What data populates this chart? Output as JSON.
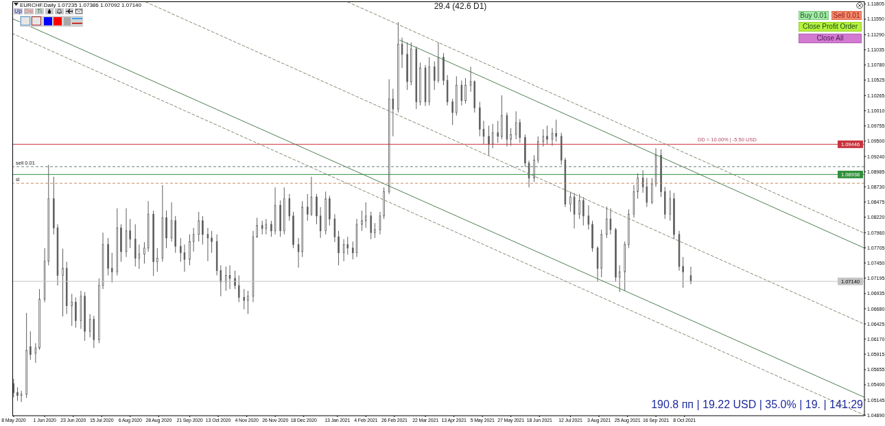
{
  "chart_data": {
    "type": "candlestick",
    "title": "EURCHF.Daily 1.07235 1.07386 1.07092 1.07140",
    "color": "#5c5c5c",
    "x": [
      "2020-05-08",
      "2020-05-11",
      "2020-05-14",
      "2020-05-18",
      "2020-05-21",
      "2020-05-25",
      "2020-05-28",
      "2020-06-01",
      "2020-06-04",
      "2020-06-08",
      "2020-06-11",
      "2020-06-15",
      "2020-06-18",
      "2020-06-22",
      "2020-06-25",
      "2020-06-29",
      "2020-07-02",
      "2020-07-06",
      "2020-07-09",
      "2020-07-13",
      "2020-07-16",
      "2020-07-20",
      "2020-07-23",
      "2020-07-27",
      "2020-07-30",
      "2020-08-03",
      "2020-08-06",
      "2020-08-10",
      "2020-08-13",
      "2020-08-17",
      "2020-08-20",
      "2020-08-24",
      "2020-08-27",
      "2020-08-31",
      "2020-09-03",
      "2020-09-07",
      "2020-09-10",
      "2020-09-14",
      "2020-09-17",
      "2020-09-21",
      "2020-09-24",
      "2020-09-28",
      "2020-10-01",
      "2020-10-05",
      "2020-10-08",
      "2020-10-12",
      "2020-10-15",
      "2020-10-19",
      "2020-10-22",
      "2020-10-26",
      "2020-10-29",
      "2020-11-02",
      "2020-11-05",
      "2020-11-09",
      "2020-11-12",
      "2020-11-16",
      "2020-11-19",
      "2020-11-23",
      "2020-11-26",
      "2020-11-30",
      "2020-12-03",
      "2020-12-07",
      "2020-12-10",
      "2020-12-14",
      "2020-12-17",
      "2020-12-21",
      "2020-12-24",
      "2020-12-28",
      "2020-12-31",
      "2021-01-04",
      "2021-01-07",
      "2021-01-11",
      "2021-01-14",
      "2021-01-18",
      "2021-01-21",
      "2021-01-25",
      "2021-01-28",
      "2021-02-01",
      "2021-02-04",
      "2021-02-08",
      "2021-02-11",
      "2021-02-15",
      "2021-02-18",
      "2021-02-22",
      "2021-02-25",
      "2021-03-01",
      "2021-03-04",
      "2021-03-08",
      "2021-03-11",
      "2021-03-15",
      "2021-03-18",
      "2021-03-22",
      "2021-03-25",
      "2021-03-29",
      "2021-04-01",
      "2021-04-05",
      "2021-04-08",
      "2021-04-12",
      "2021-04-15",
      "2021-04-19",
      "2021-04-22",
      "2021-04-26",
      "2021-04-29",
      "2021-05-03",
      "2021-05-06",
      "2021-05-10",
      "2021-05-13",
      "2021-05-17",
      "2021-05-20",
      "2021-05-24",
      "2021-05-27",
      "2021-05-31",
      "2021-06-03",
      "2021-06-07",
      "2021-06-10",
      "2021-06-14",
      "2021-06-17",
      "2021-06-21",
      "2021-06-24",
      "2021-06-28",
      "2021-07-01",
      "2021-07-05",
      "2021-07-08",
      "2021-07-12",
      "2021-07-15",
      "2021-07-19",
      "2021-07-22",
      "2021-07-26",
      "2021-07-29",
      "2021-08-02",
      "2021-08-05",
      "2021-08-09",
      "2021-08-12",
      "2021-08-16",
      "2021-08-19",
      "2021-08-23",
      "2021-08-26",
      "2021-08-30",
      "2021-09-02",
      "2021-09-06",
      "2021-09-09",
      "2021-09-13",
      "2021-09-16",
      "2021-09-20",
      "2021-09-23",
      "2021-09-27",
      "2021-09-30",
      "2021-10-04",
      "2021-10-07",
      "2021-10-13"
    ],
    "ohlc": [
      [
        1.0542,
        1.055,
        1.0519,
        1.0527
      ],
      [
        1.0527,
        1.0536,
        1.0513,
        1.0522
      ],
      [
        1.0522,
        1.053,
        1.0511,
        1.0524
      ],
      [
        1.0524,
        1.0661,
        1.0518,
        1.0598
      ],
      [
        1.0604,
        1.063,
        1.0582,
        1.0591
      ],
      [
        1.0593,
        1.061,
        1.0577,
        1.0602
      ],
      [
        1.0602,
        1.0701,
        1.0599,
        1.0684
      ],
      [
        1.0684,
        1.077,
        1.0679,
        1.0748
      ],
      [
        1.0748,
        1.091,
        1.0741,
        1.0853
      ],
      [
        1.0853,
        1.089,
        1.0793,
        1.0804
      ],
      [
        1.0804,
        1.081,
        1.0707,
        1.0724
      ],
      [
        1.0724,
        1.0769,
        1.0655,
        1.0736
      ],
      [
        1.0736,
        1.0747,
        1.0659,
        1.0673
      ],
      [
        1.0673,
        1.0693,
        1.0639,
        1.0679
      ],
      [
        1.0679,
        1.0687,
        1.0636,
        1.0648
      ],
      [
        1.0648,
        1.0698,
        1.0634,
        1.0689
      ],
      [
        1.0689,
        1.0696,
        1.0614,
        1.063
      ],
      [
        1.063,
        1.0659,
        1.062,
        1.065
      ],
      [
        1.065,
        1.0656,
        1.0602,
        1.0616
      ],
      [
        1.0616,
        1.0719,
        1.061,
        1.0707
      ],
      [
        1.0707,
        1.0796,
        1.0701,
        1.0776
      ],
      [
        1.0776,
        1.0787,
        1.0724,
        1.0736
      ],
      [
        1.0736,
        1.0762,
        1.0712,
        1.073
      ],
      [
        1.073,
        1.0837,
        1.0724,
        1.0804
      ],
      [
        1.0804,
        1.081,
        1.0747,
        1.0764
      ],
      [
        1.0764,
        1.0837,
        1.0755,
        1.0799
      ],
      [
        1.0799,
        1.0819,
        1.077,
        1.0785
      ],
      [
        1.0785,
        1.081,
        1.0739,
        1.0753
      ],
      [
        1.0753,
        1.0776,
        1.0735,
        1.076
      ],
      [
        1.076,
        1.078,
        1.0744,
        1.077
      ],
      [
        1.077,
        1.0849,
        1.0764,
        1.0827
      ],
      [
        1.0827,
        1.0833,
        1.0723,
        1.0747
      ],
      [
        1.0747,
        1.077,
        1.073,
        1.0753
      ],
      [
        1.0753,
        1.0876,
        1.0747,
        1.0821
      ],
      [
        1.0821,
        1.0833,
        1.077,
        1.0787
      ],
      [
        1.0787,
        1.0847,
        1.0781,
        1.0816
      ],
      [
        1.0816,
        1.0824,
        1.0762,
        1.0773
      ],
      [
        1.0773,
        1.0787,
        1.0747,
        1.0762
      ],
      [
        1.0762,
        1.0776,
        1.073,
        1.0751
      ],
      [
        1.0751,
        1.0793,
        1.0741,
        1.0781
      ],
      [
        1.0781,
        1.0804,
        1.0764,
        1.0793
      ],
      [
        1.0793,
        1.0831,
        1.0781,
        1.0816
      ],
      [
        1.0816,
        1.0824,
        1.0776,
        1.0793
      ],
      [
        1.0793,
        1.0804,
        1.0748,
        1.0787
      ],
      [
        1.0787,
        1.0799,
        1.0762,
        1.0781
      ],
      [
        1.0781,
        1.0793,
        1.0724,
        1.0732
      ],
      [
        1.0732,
        1.0741,
        1.0689,
        1.0713
      ],
      [
        1.0713,
        1.0739,
        1.0698,
        1.0724
      ],
      [
        1.0724,
        1.0741,
        1.0701,
        1.0719
      ],
      [
        1.0719,
        1.0732,
        1.0701,
        1.0707
      ],
      [
        1.0707,
        1.0724,
        1.0679,
        1.0687
      ],
      [
        1.0687,
        1.0701,
        1.0667,
        1.0682
      ],
      [
        1.0682,
        1.0698,
        1.0659,
        1.0689
      ],
      [
        1.0689,
        1.0799,
        1.0679,
        1.0789
      ],
      [
        1.0789,
        1.0821,
        1.0787,
        1.0808
      ],
      [
        1.0808,
        1.0816,
        1.0793,
        1.0803
      ],
      [
        1.0803,
        1.0819,
        1.0793,
        1.081
      ],
      [
        1.081,
        1.0816,
        1.0789,
        1.0799
      ],
      [
        1.0799,
        1.0872,
        1.0793,
        1.0842
      ],
      [
        1.0842,
        1.085,
        1.0789,
        1.0799
      ],
      [
        1.0799,
        1.0872,
        1.0793,
        1.0853
      ],
      [
        1.0853,
        1.0861,
        1.0816,
        1.0824
      ],
      [
        1.0824,
        1.0831,
        1.077,
        1.0776
      ],
      [
        1.0776,
        1.0787,
        1.0737,
        1.0764
      ],
      [
        1.0764,
        1.0849,
        1.0755,
        1.0839
      ],
      [
        1.0839,
        1.0861,
        1.0816,
        1.0827
      ],
      [
        1.0827,
        1.089,
        1.0824,
        1.0856
      ],
      [
        1.0856,
        1.0861,
        1.081,
        1.0824
      ],
      [
        1.0824,
        1.0839,
        1.0787,
        1.0799
      ],
      [
        1.0799,
        1.0865,
        1.0793,
        1.0853
      ],
      [
        1.0853,
        1.0858,
        1.0808,
        1.0819
      ],
      [
        1.0819,
        1.0827,
        1.078,
        1.0789
      ],
      [
        1.0789,
        1.0799,
        1.0741,
        1.0762
      ],
      [
        1.0762,
        1.0785,
        1.0748,
        1.0776
      ],
      [
        1.0776,
        1.0789,
        1.0759,
        1.077
      ],
      [
        1.077,
        1.0781,
        1.0751,
        1.0762
      ],
      [
        1.0762,
        1.0819,
        1.0755,
        1.081
      ],
      [
        1.081,
        1.0833,
        1.0799,
        1.0816
      ],
      [
        1.0816,
        1.0847,
        1.0804,
        1.0824
      ],
      [
        1.0824,
        1.0831,
        1.0785,
        1.0796
      ],
      [
        1.0796,
        1.0812,
        1.0787,
        1.0801
      ],
      [
        1.0801,
        1.0831,
        1.0793,
        1.0824
      ],
      [
        1.0824,
        1.0872,
        1.0819,
        1.0865
      ],
      [
        1.0865,
        1.1054,
        1.0861,
        1.1021
      ],
      [
        1.1021,
        1.1038,
        1.0958,
        1.1004
      ],
      [
        1.1004,
        1.115,
        1.0998,
        1.1113
      ],
      [
        1.1113,
        1.1124,
        1.1073,
        1.1096
      ],
      [
        1.1096,
        1.1116,
        1.1036,
        1.105
      ],
      [
        1.105,
        1.1116,
        1.1044,
        1.1105
      ],
      [
        1.1105,
        1.1109,
        1.1004,
        1.1016
      ],
      [
        1.1016,
        1.1082,
        1.101,
        1.1073
      ],
      [
        1.1073,
        1.1078,
        1.1009,
        1.1016
      ],
      [
        1.1016,
        1.1091,
        1.101,
        1.1075
      ],
      [
        1.1075,
        1.1084,
        1.1036,
        1.1052
      ],
      [
        1.1052,
        1.1116,
        1.1048,
        1.1091
      ],
      [
        1.1091,
        1.1098,
        1.1044,
        1.1052
      ],
      [
        1.1052,
        1.1061,
        1.101,
        1.1016
      ],
      [
        1.1016,
        1.1021,
        1.0977,
        1.0998
      ],
      [
        1.0998,
        1.1059,
        1.0993,
        1.1044
      ],
      [
        1.1044,
        1.1052,
        1.101,
        1.1018
      ],
      [
        1.1018,
        1.1056,
        1.1013,
        1.1044
      ],
      [
        1.1044,
        1.1075,
        1.1033,
        1.105
      ],
      [
        1.105,
        1.1052,
        1.0998,
        1.1006
      ],
      [
        1.1006,
        1.1016,
        1.0958,
        1.097
      ],
      [
        1.097,
        1.0984,
        1.0945,
        1.0958
      ],
      [
        1.0958,
        1.0976,
        1.0926,
        1.0945
      ],
      [
        1.0945,
        1.0979,
        1.0938,
        1.0964
      ],
      [
        1.0964,
        1.0984,
        1.0947,
        1.0958
      ],
      [
        1.0958,
        1.1027,
        1.0953,
        1.0993
      ],
      [
        1.0993,
        1.0998,
        1.0941,
        1.0953
      ],
      [
        1.0953,
        1.0972,
        1.0942,
        1.0961
      ],
      [
        1.0961,
        1.1,
        1.0953,
        1.0981
      ],
      [
        1.0981,
        1.0987,
        1.0947,
        1.0956
      ],
      [
        1.0956,
        1.0961,
        1.0907,
        1.0913
      ],
      [
        1.0913,
        1.0917,
        1.0872,
        1.0888
      ],
      [
        1.0888,
        1.0926,
        1.0881,
        1.0918
      ],
      [
        1.0918,
        1.0958,
        1.0913,
        1.0949
      ],
      [
        1.0949,
        1.097,
        1.0941,
        1.0958
      ],
      [
        1.0958,
        1.0976,
        1.0945,
        1.0953
      ],
      [
        1.0953,
        1.0972,
        1.0942,
        1.0963
      ],
      [
        1.0963,
        1.0986,
        1.0949,
        1.0958
      ],
      [
        1.0958,
        1.0964,
        1.091,
        1.0918
      ],
      [
        1.0918,
        1.0922,
        1.0839,
        1.0844
      ],
      [
        1.0844,
        1.0865,
        1.0831,
        1.0856
      ],
      [
        1.0856,
        1.0863,
        1.0803,
        1.0827
      ],
      [
        1.0827,
        1.0861,
        1.0819,
        1.085
      ],
      [
        1.085,
        1.0856,
        1.0808,
        1.0824
      ],
      [
        1.0824,
        1.0842,
        1.0801,
        1.081
      ],
      [
        1.081,
        1.0816,
        1.0764,
        1.077
      ],
      [
        1.077,
        1.0773,
        1.0714,
        1.0736
      ],
      [
        1.0736,
        1.0801,
        1.0721,
        1.0793
      ],
      [
        1.0793,
        1.084,
        1.0787,
        1.0819
      ],
      [
        1.0819,
        1.0837,
        1.0793,
        1.0801
      ],
      [
        1.0801,
        1.0804,
        1.0713,
        1.0721
      ],
      [
        1.0721,
        1.0741,
        1.0696,
        1.073
      ],
      [
        1.073,
        1.0781,
        1.0698,
        1.0776
      ],
      [
        1.0776,
        1.0835,
        1.077,
        1.0827
      ],
      [
        1.0827,
        1.0876,
        1.0821,
        1.0865
      ],
      [
        1.0865,
        1.0896,
        1.0853,
        1.0888
      ],
      [
        1.0888,
        1.0901,
        1.0863,
        1.0873
      ],
      [
        1.0873,
        1.0888,
        1.0839,
        1.0847
      ],
      [
        1.0847,
        1.0888,
        1.0844,
        1.0878
      ],
      [
        1.0878,
        1.0938,
        1.0873,
        1.0926
      ],
      [
        1.0926,
        1.0936,
        1.0856,
        1.0865
      ],
      [
        1.0865,
        1.0873,
        1.0819,
        1.0827
      ],
      [
        1.0827,
        1.0867,
        1.0816,
        1.0853
      ],
      [
        1.0853,
        1.0863,
        1.0785,
        1.0793
      ],
      [
        1.0793,
        1.0799,
        1.0732,
        1.0739
      ],
      [
        1.0739,
        1.0755,
        1.0703,
        1.073
      ],
      [
        1.07235,
        1.07386,
        1.07092,
        1.0714
      ]
    ],
    "series": [
      {
        "type": "line",
        "x": [
          "2021-01-21",
          "2022-02-24"
        ],
        "values": [
          1.1184,
          1.0795
        ],
        "color": "#7f8a6c",
        "line_style": "dashed"
      },
      {
        "type": "line",
        "x": [
          "2021-03-02",
          "2022-02-24"
        ],
        "values": [
          1.112,
          1.077
        ],
        "color": "#4e7d52",
        "line_style": "solid"
      },
      {
        "type": "line",
        "x": [
          "2020-08-18",
          "2022-02-24"
        ],
        "values": [
          1.1184,
          1.0642
        ],
        "color": "#7f8a6c",
        "line_style": "dashed"
      },
      {
        "type": "line",
        "x": [
          "2020-05-07",
          "2022-02-24"
        ],
        "values": [
          1.1156,
          1.0519
        ],
        "color": "#4e7d52",
        "line_style": "solid"
      },
      {
        "type": "line",
        "x": [
          "2020-05-07",
          "2022-02-24"
        ],
        "values": [
          1.1131,
          1.0489
        ],
        "color": "#7f8a6c",
        "line_style": "dashed"
      }
    ],
    "xlim": [
      "2020-05-07",
      "2022-02-24"
    ],
    "xticks": [
      {
        "value": "2020-05-08",
        "label": "8 May 2020"
      },
      {
        "value": "2020-06-01",
        "label": "1 Jun 2020"
      },
      {
        "value": "2020-06-23",
        "label": "23 Jun 2020"
      },
      {
        "value": "2020-07-15",
        "label": "15 Jul 2020"
      },
      {
        "value": "2020-08-06",
        "label": "6 Aug 2020"
      },
      {
        "value": "2020-08-28",
        "label": "28 Aug 2020"
      },
      {
        "value": "2020-09-21",
        "label": "21 Sep 2020"
      },
      {
        "value": "2020-10-13",
        "label": "13 Oct 2020"
      },
      {
        "value": "2020-11-04",
        "label": "4 Nov 2020"
      },
      {
        "value": "2020-11-26",
        "label": "26 Nov 2020"
      },
      {
        "value": "2020-12-18",
        "label": "18 Dec 2020"
      },
      {
        "value": "2021-01-13",
        "label": "13 Jan 2021"
      },
      {
        "value": "2021-02-04",
        "label": "4 Feb 2021"
      },
      {
        "value": "2021-02-26",
        "label": "26 Feb 2021"
      },
      {
        "value": "2021-03-22",
        "label": "22 Mar 2021"
      },
      {
        "value": "2021-04-13",
        "label": "13 Apr 2021"
      },
      {
        "value": "2021-05-05",
        "label": "5 May 2021"
      },
      {
        "value": "2021-05-27",
        "label": "27 May 2021"
      },
      {
        "value": "2021-06-18",
        "label": "18 Jun 2021"
      },
      {
        "value": "2021-07-12",
        "label": "12 Jul 2021"
      },
      {
        "value": "2021-08-03",
        "label": "3 Aug 2021"
      },
      {
        "value": "2021-08-25",
        "label": "25 Aug 2021"
      },
      {
        "value": "2021-09-16",
        "label": "16 Sep 2021"
      },
      {
        "value": "2021-10-08",
        "label": "8 Oct 2021"
      }
    ],
    "ylim": [
      1.0488,
      1.1185
    ],
    "yticks": [
      1.11805,
      {
        "value": 1.1155,
        "label": "1.11550"
      },
      {
        "value": 1.1129,
        "label": "1.11290"
      },
      1.11035,
      {
        "value": 1.1078,
        "label": "1.10780"
      },
      1.10525,
      1.10265,
      {
        "value": 1.1001,
        "label": "1.10010"
      },
      1.09755,
      {
        "value": 1.095,
        "label": "1.09500"
      },
      {
        "value": 1.0924,
        "label": "1.09240"
      },
      1.08985,
      {
        "value": 1.0873,
        "label": "1.08730"
      },
      1.08475,
      {
        "value": 1.0822,
        "label": "1.08220"
      },
      {
        "value": 1.0796,
        "label": "1.07960"
      },
      1.07705,
      {
        "value": 1.0745,
        "label": "1.07450"
      },
      1.07195,
      1.06935,
      {
        "value": 1.0668,
        "label": "1.06680"
      },
      1.06425,
      {
        "value": 1.0617,
        "label": "1.06170"
      },
      1.05915,
      1.05655,
      {
        "value": 1.054,
        "label": "1.05400"
      },
      1.05145,
      {
        "value": 1.0489,
        "label": "1.04890"
      }
    ],
    "ref_lines": [
      {
        "axis": "y",
        "value": 1.09446,
        "label": "1.09446",
        "color": "#c8323c"
      },
      {
        "axis": "y",
        "value": 1.0907,
        "label": "sell 0.01",
        "color": "#6a7a7a",
        "line_style": "dashed"
      },
      {
        "axis": "y",
        "value": 1.08938,
        "label": "1.08938",
        "color": "#2f8f3a"
      },
      {
        "axis": "y",
        "value": 1.0879,
        "label": "sl",
        "color": "#c58a62",
        "line_style": "dashed"
      },
      {
        "axis": "y",
        "value": 1.0714,
        "label": "1.07140",
        "color": "#c4c4c4"
      }
    ],
    "annotations": [
      "29.4 (42.6 D1)",
      "Up",
      "Dw",
      "Ti",
      "Buy 0.01",
      "Sell 0.01",
      "Close Profit Order",
      "Close All",
      {
        "text": "DD = 10.00% | -5.50 USD",
        "x": "2021-11-10",
        "y": 1.09446
      },
      "190.8 пп | 19.22 USD | 35.0% | 19. | 141:29"
    ]
  }
}
